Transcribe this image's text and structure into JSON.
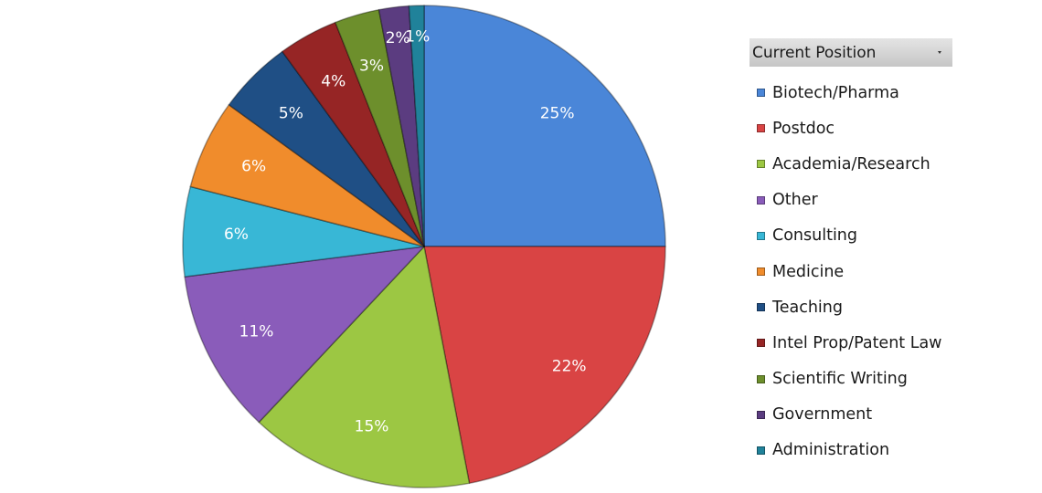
{
  "chart_data": {
    "type": "pie",
    "title": "",
    "legend_title": "Current Position",
    "legend_position": "right",
    "slices": [
      {
        "label": "Biotech/Pharma",
        "value": 25,
        "display": "25%",
        "color": "#4a86d8"
      },
      {
        "label": "Postdoc",
        "value": 22,
        "display": "22%",
        "color": "#d94444"
      },
      {
        "label": "Academia/Research",
        "value": 15,
        "display": "15%",
        "color": "#9cc743"
      },
      {
        "label": "Other",
        "value": 11,
        "display": "11%",
        "color": "#8a5cba"
      },
      {
        "label": "Consulting",
        "value": 6,
        "display": "6%",
        "color": "#38b7d6"
      },
      {
        "label": "Medicine",
        "value": 6,
        "display": "6%",
        "color": "#f08c2c"
      },
      {
        "label": "Teaching",
        "value": 5,
        "display": "5%",
        "color": "#1f4f85"
      },
      {
        "label": "Intel Prop/Patent Law",
        "value": 4,
        "display": "4%",
        "color": "#962525"
      },
      {
        "label": "Scientific Writing",
        "value": 3,
        "display": "3%",
        "color": "#6d8f2c"
      },
      {
        "label": "Government",
        "value": 2,
        "display": "2%",
        "color": "#5b3c80"
      },
      {
        "label": "Administration",
        "value": 1,
        "display": "1%",
        "color": "#20829a"
      }
    ]
  }
}
